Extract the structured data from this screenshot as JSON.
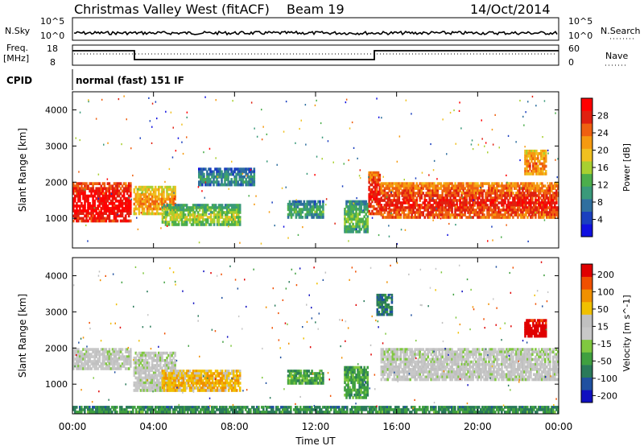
{
  "header": {
    "station": "Christmas Valley West (fitACF)",
    "beam": "Beam 19",
    "date": "14/Oct/2014"
  },
  "strip1": {
    "left_label": "N.Sky",
    "right_label": "N.Search",
    "left_ticks": [
      "10^5",
      "10^0"
    ],
    "right_ticks": [
      "10^5",
      "10^0"
    ]
  },
  "strip2": {
    "left_label_1": "Freq.",
    "left_label_2": "[MHz]",
    "right_label": "Nave",
    "left_ticks": [
      "18",
      "8"
    ],
    "right_ticks": [
      "60",
      "0"
    ]
  },
  "cpid": {
    "label": "CPID",
    "value": "normal (fast) 151 IF"
  },
  "colors": {
    "power_scale": [
      "#1010e0",
      "#1a3fbf",
      "#2f6f9f",
      "#3a9a7a",
      "#4cae4c",
      "#a8d030",
      "#f0c020",
      "#f59a10",
      "#ef6010",
      "#e02010",
      "#ff0000"
    ],
    "velocity_scale": [
      "#1010c0",
      "#2050a0",
      "#2a7a5a",
      "#40a040",
      "#80c840",
      "#c8c8c8",
      "#c0c0c0",
      "#f0c000",
      "#f09000",
      "#f05000",
      "#e00000"
    ]
  },
  "chart_data": [
    {
      "type": "heatmap",
      "name_key": "power",
      "ylabel": "Slant Range [km]",
      "xlabel": "Time UT",
      "x_ticks": [
        "00:00",
        "04:00",
        "08:00",
        "12:00",
        "16:00",
        "20:00",
        "00:00"
      ],
      "y_ticks": [
        "1000",
        "2000",
        "3000",
        "4000"
      ],
      "ylim": [
        180,
        4500
      ],
      "xlim_hours": [
        0,
        24
      ],
      "colorbar": {
        "label": "Power [dB]",
        "ticks": [
          "4",
          "8",
          "12",
          "16",
          "20",
          "24",
          "28"
        ]
      },
      "regions": [
        {
          "t0": 0.0,
          "t1": 2.9,
          "r0": 900,
          "r1": 2000,
          "level": 0.82
        },
        {
          "t0": 3.0,
          "t1": 5.1,
          "r0": 1100,
          "r1": 1900,
          "level": 0.55
        },
        {
          "t0": 4.4,
          "t1": 8.3,
          "r0": 800,
          "r1": 1400,
          "level": 0.35
        },
        {
          "t0": 6.2,
          "t1": 9.0,
          "r0": 1900,
          "r1": 2400,
          "level": 0.18
        },
        {
          "t0": 10.6,
          "t1": 12.4,
          "r0": 1000,
          "r1": 1500,
          "level": 0.22
        },
        {
          "t0": 13.4,
          "t1": 14.6,
          "r0": 600,
          "r1": 1500,
          "level": 0.3
        },
        {
          "t0": 14.6,
          "t1": 15.2,
          "r0": 1100,
          "r1": 2300,
          "level": 0.75
        },
        {
          "t0": 15.2,
          "t1": 24.0,
          "r0": 1000,
          "r1": 2000,
          "level": 0.72
        },
        {
          "t0": 22.3,
          "t1": 23.4,
          "r0": 2200,
          "r1": 2900,
          "level": 0.6
        }
      ]
    },
    {
      "type": "heatmap",
      "name_key": "velocity",
      "ylabel": "Slant Range [km]",
      "xlabel": "Time UT",
      "x_ticks": [
        "00:00",
        "04:00",
        "08:00",
        "12:00",
        "16:00",
        "20:00",
        "00:00"
      ],
      "y_ticks": [
        "1000",
        "2000",
        "3000",
        "4000"
      ],
      "ylim": [
        180,
        4500
      ],
      "xlim_hours": [
        0,
        24
      ],
      "colorbar": {
        "label": "Velocity [m s^-1]",
        "ticks": [
          "200",
          "100",
          "50",
          "15",
          "-15",
          "-50",
          "-100",
          "-200"
        ]
      },
      "regions": [
        {
          "t0": 0.0,
          "t1": 2.9,
          "r0": 1400,
          "r1": 2000,
          "level": 0.5
        },
        {
          "t0": 3.0,
          "t1": 5.1,
          "r0": 800,
          "r1": 1900,
          "level": 0.5
        },
        {
          "t0": 4.4,
          "t1": 8.3,
          "r0": 800,
          "r1": 1400,
          "level": 0.68
        },
        {
          "t0": 10.6,
          "t1": 12.4,
          "r0": 1000,
          "r1": 1400,
          "level": 0.3
        },
        {
          "t0": 13.4,
          "t1": 14.6,
          "r0": 600,
          "r1": 1500,
          "level": 0.3
        },
        {
          "t0": 15.2,
          "t1": 24.0,
          "r0": 1100,
          "r1": 2000,
          "level": 0.5
        },
        {
          "t0": 0.0,
          "t1": 24.0,
          "r0": 200,
          "r1": 400,
          "level": 0.25
        },
        {
          "t0": 22.3,
          "t1": 23.4,
          "r0": 2300,
          "r1": 2800,
          "level": 0.97
        },
        {
          "t0": 15.0,
          "t1": 15.8,
          "r0": 2900,
          "r1": 3500,
          "level": 0.2
        }
      ]
    }
  ]
}
